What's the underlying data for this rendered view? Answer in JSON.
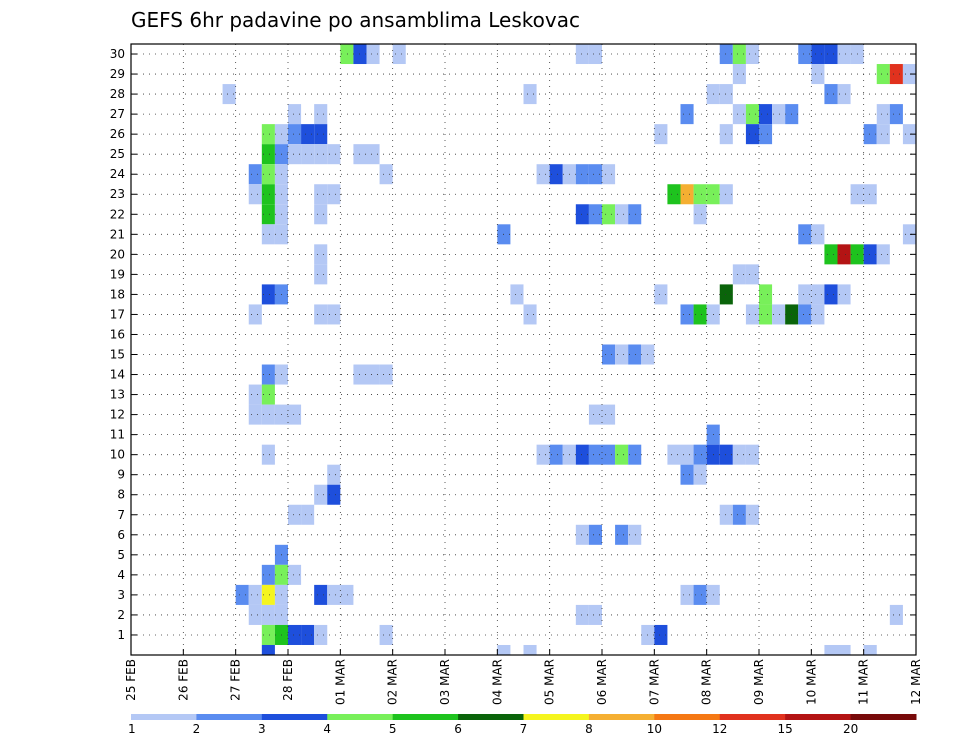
{
  "chart_data": {
    "type": "heatmap",
    "title": "GEFS 6hr padavine po ansamblima Leskovac",
    "xlabel": "",
    "ylabel": "",
    "x_tick_labels": [
      "25 FEB",
      "26 FEB",
      "27 FEB",
      "28 FEB",
      "01 MAR",
      "02 MAR",
      "03 MAR",
      "04 MAR",
      "05 MAR",
      "06 MAR",
      "07 MAR",
      "08 MAR",
      "09 MAR",
      "10 MAR",
      "11 MAR",
      "12 MAR"
    ],
    "y_tick_labels": [
      "1",
      "2",
      "3",
      "4",
      "5",
      "6",
      "7",
      "8",
      "9",
      "10",
      "11",
      "12",
      "13",
      "14",
      "15",
      "16",
      "17",
      "18",
      "19",
      "20",
      "21",
      "22",
      "23",
      "24",
      "25",
      "26",
      "27",
      "28",
      "29",
      "30"
    ],
    "members": 30,
    "steps_per_day": 4,
    "days": 15,
    "grid": true,
    "colorbar": {
      "labels": [
        "1",
        "2",
        "3",
        "4",
        "5",
        "6",
        "7",
        "8",
        "10",
        "12",
        "15",
        "20"
      ],
      "colors": [
        "#b4c8f5",
        "#5a8cf0",
        "#1e4fdc",
        "#78f05a",
        "#1ec31e",
        "#0a640a",
        "#f5f51e",
        "#f5af32",
        "#f57814",
        "#e1321e",
        "#b41414",
        "#780a0a"
      ]
    },
    "data_note": "Each cell = [member, step, level]; step counts 6-hour intervals from 25 FEB 00 UTC; level = index into colorbar.colors",
    "cells": [
      [
        30,
        16,
        3
      ],
      [
        30,
        17,
        2
      ],
      [
        30,
        18,
        0
      ],
      [
        30,
        20,
        0
      ],
      [
        30,
        34,
        0
      ],
      [
        30,
        35,
        0
      ],
      [
        30,
        45,
        1
      ],
      [
        30,
        46,
        3
      ],
      [
        30,
        47,
        0
      ],
      [
        30,
        51,
        1
      ],
      [
        30,
        52,
        2
      ],
      [
        30,
        53,
        2
      ],
      [
        30,
        54,
        0
      ],
      [
        30,
        55,
        0
      ],
      [
        29,
        46,
        0
      ],
      [
        29,
        52,
        0
      ],
      [
        29,
        57,
        3
      ],
      [
        29,
        58,
        9
      ],
      [
        29,
        59,
        0
      ],
      [
        28,
        7,
        0
      ],
      [
        28,
        30,
        0
      ],
      [
        28,
        44,
        0
      ],
      [
        28,
        45,
        0
      ],
      [
        28,
        53,
        1
      ],
      [
        28,
        54,
        0
      ],
      [
        27,
        12,
        0
      ],
      [
        27,
        14,
        0
      ],
      [
        27,
        42,
        1
      ],
      [
        27,
        46,
        0
      ],
      [
        27,
        47,
        3
      ],
      [
        27,
        48,
        2
      ],
      [
        27,
        49,
        0
      ],
      [
        27,
        50,
        1
      ],
      [
        27,
        57,
        0
      ],
      [
        27,
        58,
        1
      ],
      [
        26,
        10,
        3
      ],
      [
        26,
        11,
        0
      ],
      [
        26,
        12,
        1
      ],
      [
        26,
        13,
        2
      ],
      [
        26,
        14,
        2
      ],
      [
        26,
        40,
        0
      ],
      [
        26,
        45,
        0
      ],
      [
        26,
        47,
        2
      ],
      [
        26,
        48,
        1
      ],
      [
        26,
        56,
        1
      ],
      [
        26,
        57,
        0
      ],
      [
        26,
        59,
        0
      ],
      [
        25,
        10,
        4
      ],
      [
        25,
        11,
        1
      ],
      [
        25,
        12,
        0
      ],
      [
        25,
        13,
        0
      ],
      [
        25,
        14,
        0
      ],
      [
        25,
        15,
        0
      ],
      [
        25,
        17,
        0
      ],
      [
        25,
        18,
        0
      ],
      [
        24,
        9,
        1
      ],
      [
        24,
        10,
        3
      ],
      [
        24,
        11,
        0
      ],
      [
        24,
        19,
        0
      ],
      [
        24,
        31,
        0
      ],
      [
        24,
        32,
        2
      ],
      [
        24,
        33,
        0
      ],
      [
        24,
        34,
        1
      ],
      [
        24,
        35,
        1
      ],
      [
        24,
        36,
        0
      ],
      [
        23,
        9,
        0
      ],
      [
        23,
        10,
        4
      ],
      [
        23,
        11,
        0
      ],
      [
        23,
        14,
        0
      ],
      [
        23,
        15,
        0
      ],
      [
        23,
        41,
        4
      ],
      [
        23,
        42,
        7
      ],
      [
        23,
        43,
        3
      ],
      [
        23,
        44,
        3
      ],
      [
        23,
        45,
        0
      ],
      [
        23,
        55,
        0
      ],
      [
        23,
        56,
        0
      ],
      [
        22,
        10,
        4
      ],
      [
        22,
        11,
        0
      ],
      [
        22,
        14,
        0
      ],
      [
        22,
        34,
        2
      ],
      [
        22,
        35,
        1
      ],
      [
        22,
        36,
        3
      ],
      [
        22,
        37,
        0
      ],
      [
        22,
        38,
        1
      ],
      [
        22,
        43,
        0
      ],
      [
        21,
        10,
        0
      ],
      [
        21,
        11,
        0
      ],
      [
        21,
        28,
        1
      ],
      [
        21,
        51,
        1
      ],
      [
        21,
        52,
        0
      ],
      [
        21,
        59,
        0
      ],
      [
        20,
        14,
        0
      ],
      [
        20,
        53,
        4
      ],
      [
        20,
        54,
        10
      ],
      [
        20,
        55,
        4
      ],
      [
        20,
        56,
        2
      ],
      [
        20,
        57,
        0
      ],
      [
        19,
        14,
        0
      ],
      [
        19,
        46,
        0
      ],
      [
        19,
        47,
        0
      ],
      [
        18,
        10,
        2
      ],
      [
        18,
        11,
        1
      ],
      [
        18,
        29,
        0
      ],
      [
        18,
        40,
        0
      ],
      [
        18,
        45,
        5
      ],
      [
        18,
        48,
        3
      ],
      [
        18,
        51,
        0
      ],
      [
        18,
        52,
        0
      ],
      [
        18,
        53,
        2
      ],
      [
        18,
        54,
        0
      ],
      [
        17,
        9,
        0
      ],
      [
        17,
        14,
        0
      ],
      [
        17,
        15,
        0
      ],
      [
        17,
        30,
        0
      ],
      [
        17,
        42,
        1
      ],
      [
        17,
        43,
        4
      ],
      [
        17,
        44,
        0
      ],
      [
        17,
        47,
        0
      ],
      [
        17,
        48,
        3
      ],
      [
        17,
        49,
        0
      ],
      [
        17,
        50,
        5
      ],
      [
        17,
        51,
        1
      ],
      [
        17,
        52,
        0
      ],
      [
        17,
        60,
        6
      ],
      [
        15,
        36,
        1
      ],
      [
        15,
        37,
        0
      ],
      [
        15,
        38,
        1
      ],
      [
        15,
        39,
        0
      ],
      [
        14,
        10,
        1
      ],
      [
        14,
        11,
        0
      ],
      [
        14,
        17,
        0
      ],
      [
        14,
        18,
        0
      ],
      [
        14,
        19,
        0
      ],
      [
        13,
        9,
        0
      ],
      [
        13,
        10,
        3
      ],
      [
        12,
        9,
        0
      ],
      [
        12,
        10,
        0
      ],
      [
        12,
        11,
        0
      ],
      [
        12,
        12,
        0
      ],
      [
        12,
        35,
        0
      ],
      [
        12,
        36,
        0
      ],
      [
        11,
        44,
        1
      ],
      [
        10,
        10,
        0
      ],
      [
        10,
        31,
        0
      ],
      [
        10,
        32,
        1
      ],
      [
        10,
        33,
        0
      ],
      [
        10,
        34,
        2
      ],
      [
        10,
        35,
        1
      ],
      [
        10,
        36,
        1
      ],
      [
        10,
        37,
        3
      ],
      [
        10,
        38,
        1
      ],
      [
        10,
        41,
        0
      ],
      [
        10,
        42,
        0
      ],
      [
        10,
        43,
        1
      ],
      [
        10,
        44,
        2
      ],
      [
        10,
        45,
        2
      ],
      [
        10,
        46,
        0
      ],
      [
        10,
        47,
        0
      ],
      [
        9,
        15,
        0
      ],
      [
        9,
        42,
        1
      ],
      [
        9,
        43,
        0
      ],
      [
        8,
        14,
        0
      ],
      [
        8,
        15,
        2
      ],
      [
        7,
        12,
        0
      ],
      [
        7,
        13,
        0
      ],
      [
        7,
        45,
        0
      ],
      [
        7,
        46,
        1
      ],
      [
        7,
        47,
        0
      ],
      [
        6,
        34,
        0
      ],
      [
        6,
        35,
        1
      ],
      [
        6,
        37,
        1
      ],
      [
        6,
        38,
        0
      ],
      [
        5,
        11,
        1
      ],
      [
        4,
        10,
        1
      ],
      [
        4,
        11,
        3
      ],
      [
        4,
        12,
        0
      ],
      [
        3,
        8,
        1
      ],
      [
        3,
        9,
        0
      ],
      [
        3,
        10,
        6
      ],
      [
        3,
        11,
        0
      ],
      [
        3,
        14,
        2
      ],
      [
        3,
        15,
        0
      ],
      [
        3,
        16,
        0
      ],
      [
        3,
        42,
        0
      ],
      [
        3,
        43,
        1
      ],
      [
        3,
        44,
        0
      ],
      [
        2,
        9,
        0
      ],
      [
        2,
        10,
        0
      ],
      [
        2,
        11,
        0
      ],
      [
        2,
        34,
        0
      ],
      [
        2,
        35,
        0
      ],
      [
        2,
        58,
        0
      ],
      [
        1,
        10,
        3
      ],
      [
        1,
        11,
        4
      ],
      [
        1,
        12,
        2
      ],
      [
        1,
        13,
        2
      ],
      [
        1,
        14,
        0
      ],
      [
        1,
        19,
        0
      ],
      [
        1,
        39,
        0
      ],
      [
        1,
        40,
        2
      ],
      [
        0,
        10,
        2
      ],
      [
        0,
        28,
        0
      ],
      [
        0,
        30,
        0
      ],
      [
        0,
        53,
        0
      ],
      [
        0,
        54,
        0
      ],
      [
        0,
        56,
        0
      ]
    ]
  }
}
